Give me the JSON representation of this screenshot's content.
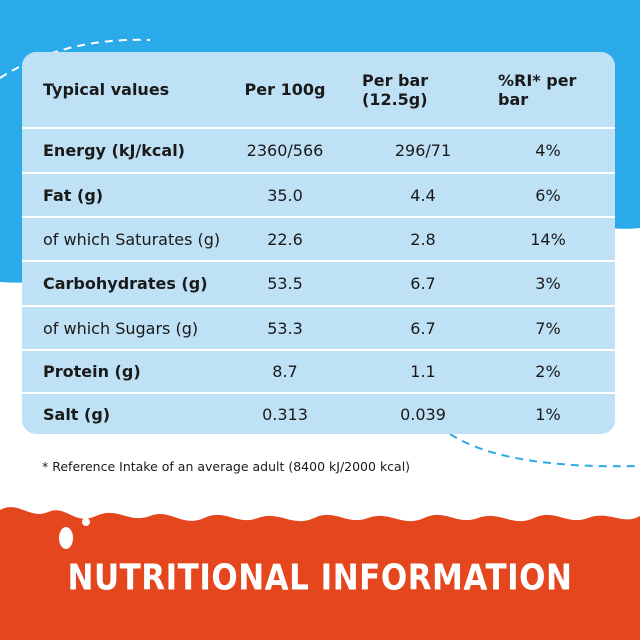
{
  "colors": {
    "sky_blue": "#2aaae8",
    "table_blue": "#bfe1f5",
    "banner_orange": "#e4471e",
    "milk_white": "#ffffff"
  },
  "table": {
    "headers": [
      "Typical values",
      "Per 100g",
      "Per bar (12.5g)",
      "%RI* per bar"
    ],
    "rows": [
      {
        "label": "Energy (kJ/kcal)",
        "bold": true,
        "per100g": "2360/566",
        "perbar": "296/71",
        "ri": "4%"
      },
      {
        "label": "Fat (g)",
        "bold": true,
        "per100g": "35.0",
        "perbar": "4.4",
        "ri": "6%"
      },
      {
        "label": "of which Saturates (g)",
        "bold": false,
        "per100g": "22.6",
        "perbar": "2.8",
        "ri": "14%"
      },
      {
        "label": "Carbohydrates (g)",
        "bold": true,
        "per100g": "53.5",
        "perbar": "6.7",
        "ri": "3%"
      },
      {
        "label": "of which Sugars (g)",
        "bold": false,
        "per100g": "53.3",
        "perbar": "6.7",
        "ri": "7%"
      },
      {
        "label": "Protein (g)",
        "bold": true,
        "per100g": "8.7",
        "perbar": "1.1",
        "ri": "2%"
      },
      {
        "label": "Salt (g)",
        "bold": true,
        "per100g": "0.313",
        "perbar": "0.039",
        "ri": "1%"
      }
    ]
  },
  "footnote": "* Reference Intake of an average adult (8400 kJ/2000 kcal)",
  "banner_title": "NUTRITIONAL INFORMATION"
}
